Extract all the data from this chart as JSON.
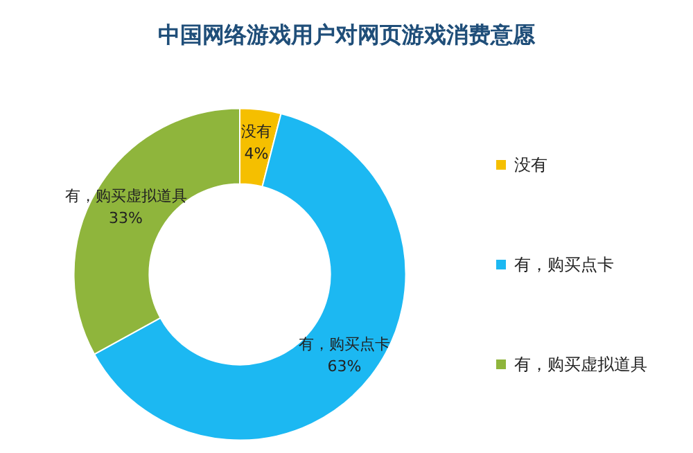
{
  "chart_data": {
    "type": "donut",
    "title": "中国网络游戏用户对网页游戏消费意愿",
    "categories": [
      "没有",
      "有，购买点卡",
      "有，购买虚拟道具"
    ],
    "values": [
      4,
      63,
      33
    ],
    "colors": [
      "#f5bf00",
      "#1cb8f2",
      "#8fb53c"
    ],
    "value_labels": [
      "4%",
      "63%",
      "33%"
    ],
    "legend": "right"
  }
}
